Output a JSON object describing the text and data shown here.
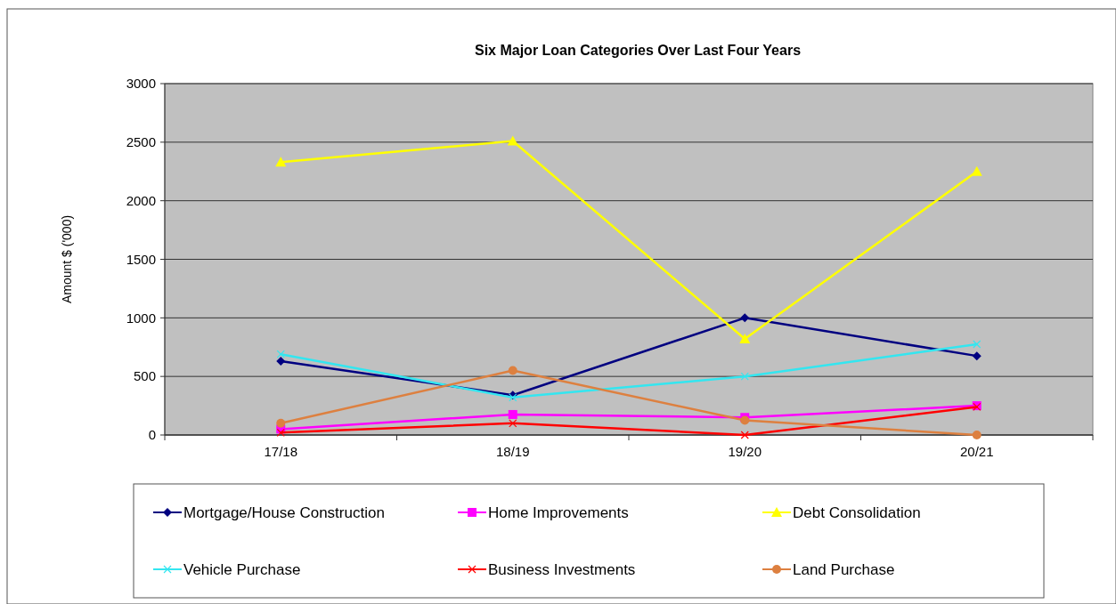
{
  "chart_data": {
    "type": "line",
    "title": "Six Major Loan Categories Over Last Four Years",
    "ylabel": "Amount $ ('000)",
    "categories": [
      "17/18",
      "18/19",
      "19/20",
      "20/21"
    ],
    "ylim": [
      0,
      3000
    ],
    "yticks": [
      0,
      500,
      1000,
      1500,
      2000,
      2500,
      3000
    ],
    "grid": "y",
    "legend": "bottom",
    "series": [
      {
        "name": "Mortgage/House Construction",
        "color": "#000080",
        "marker": "diamond",
        "values": [
          630,
          340,
          1000,
          675
        ]
      },
      {
        "name": "Home Improvements",
        "color": "#ff00ff",
        "marker": "square",
        "values": [
          50,
          175,
          150,
          250
        ]
      },
      {
        "name": "Debt Consolidation",
        "color": "#ffff00",
        "marker": "triangle",
        "values": [
          2330,
          2510,
          820,
          2250
        ]
      },
      {
        "name": "Vehicle Purchase",
        "color": "#33e6f0",
        "marker": "cross",
        "values": [
          690,
          320,
          500,
          775
        ]
      },
      {
        "name": "Business Investments",
        "color": "#ff0000",
        "marker": "cross",
        "values": [
          20,
          100,
          0,
          240
        ]
      },
      {
        "name": "Land Purchase",
        "color": "#dd8040",
        "marker": "circle",
        "values": [
          100,
          550,
          125,
          0
        ]
      }
    ]
  }
}
